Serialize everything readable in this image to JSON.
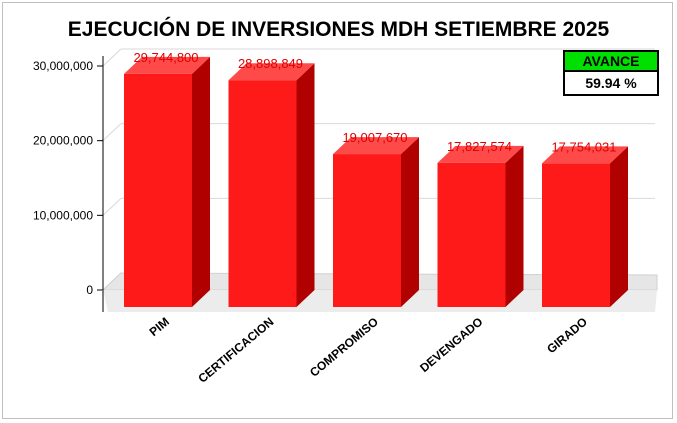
{
  "title": "EJECUCIÓN DE INVERSIONES MDH SETIEMBRE 2025",
  "avance": {
    "label": "AVANCE",
    "value": "59.94 %"
  },
  "colors": {
    "front": "#ff1a1a",
    "side": "#b00000",
    "top": "#ff4a4a",
    "label": "#e00000",
    "avance_bg": "#00e000"
  },
  "chart_data": {
    "type": "bar",
    "title": "EJECUCIÓN DE INVERSIONES MDH SETIEMBRE 2025",
    "categories": [
      "PIM",
      "CERTIFICACION",
      "COMPROMISO",
      "DEVENGADO",
      "GIRADO"
    ],
    "values": [
      29744800,
      28898849,
      19007670,
      17827574,
      17754031
    ],
    "value_labels": [
      "29,744,800",
      "28,898,849",
      "19,007,670",
      "17,827,574",
      "17,754,031"
    ],
    "yticks": [
      0,
      10000000,
      20000000,
      30000000
    ],
    "ytick_labels": [
      "0",
      "10,000,000",
      "20,000,000",
      "30,000,000"
    ],
    "ylim": [
      0,
      30000000
    ],
    "xlabel": "",
    "ylabel": "",
    "grid": true,
    "style": "3d"
  }
}
